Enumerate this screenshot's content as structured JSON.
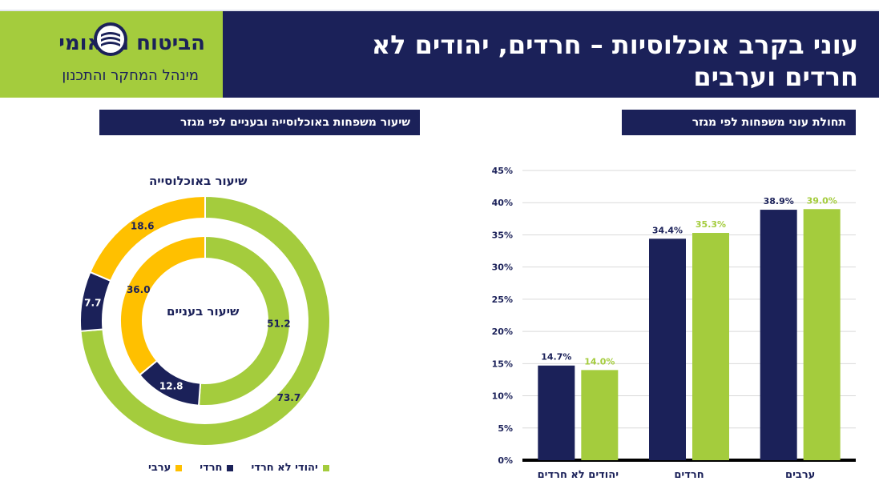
{
  "header": {
    "title": "עוני בקרב אוכלוסיות – חרדים, יהודים לא חרדים וערבים"
  },
  "logo": {
    "brand": "הביטוח הלאומי",
    "subtitle": "מינהל המחקר והתכנון"
  },
  "sections": {
    "left_title": "שיעור משפחות באוכלוסייה ובעניים לפי מגזר",
    "right_title": "תחולת עוני משפחות לפי מגזר"
  },
  "colors": {
    "navy": "#1b2159",
    "green": "#a4cc3d",
    "yellow": "#ffc000",
    "header_bg": "#1b2159"
  },
  "chart_data": [
    {
      "type": "donut",
      "outer_ring_label": "שיעור באוכלוסייה",
      "inner_ring_label": "שיעור בעניים",
      "categories": [
        "יהודי לא חרדי",
        "חרדי",
        "ערבי"
      ],
      "series": [
        {
          "name": "שיעור באוכלוסייה",
          "values": [
            73.7,
            7.7,
            18.6
          ]
        },
        {
          "name": "שיעור בעניים",
          "values": [
            51.2,
            12.8,
            36.0
          ]
        }
      ],
      "value_labels": {
        "outer": [
          "73.7",
          "7.7",
          "18.6"
        ],
        "inner": [
          "51.2",
          "12.8",
          "36.0"
        ]
      },
      "legend": [
        "יהודי לא חרדי",
        "חרדי",
        "ערבי"
      ],
      "legend_position": "bottom"
    },
    {
      "type": "bar",
      "categories": [
        "יהודים לא חרדים",
        "חרדים",
        "ערבים"
      ],
      "series": [
        {
          "values": [
            14.7,
            34.4,
            38.9
          ],
          "labels": [
            "14.7%",
            "34.4%",
            "38.9%"
          ]
        },
        {
          "values": [
            14.0,
            35.3,
            39.0
          ],
          "labels": [
            "14.0%",
            "35.3%",
            "39.0%"
          ]
        }
      ],
      "ylim": [
        0,
        45
      ],
      "yticks": [
        "0%",
        "5%",
        "10%",
        "15%",
        "20%",
        "25%",
        "30%",
        "35%",
        "40%",
        "45%"
      ],
      "grid": true
    }
  ]
}
